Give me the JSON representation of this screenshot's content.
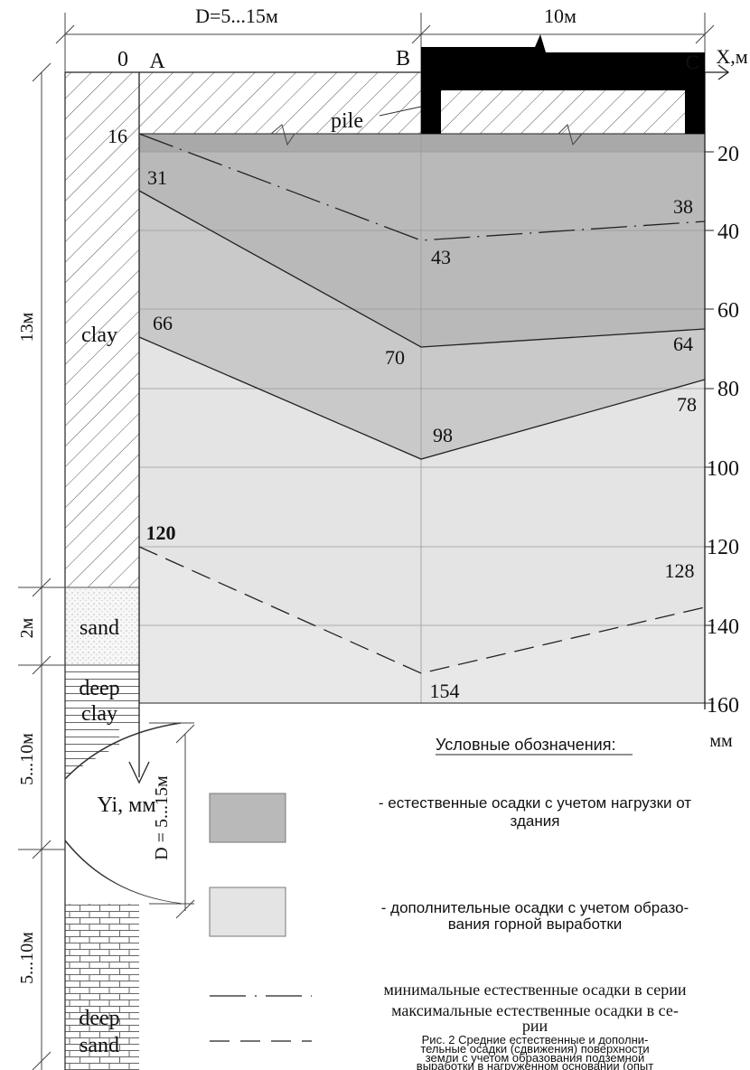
{
  "dimensions": {
    "top_left": "D=5...15м",
    "top_right": "10м",
    "left_13": "13м",
    "left_2": "2м",
    "left_5a": "5...10м",
    "left_5b": "5...10м",
    "vertical_D": "D = 5...15м"
  },
  "points": {
    "origin": "0",
    "a": "A",
    "b": "B",
    "c": "C"
  },
  "axes": {
    "x": "X,м",
    "y": "Yi, мм",
    "right_unit": "мм"
  },
  "labels": {
    "pile": "pile",
    "clay": "clay",
    "sand": "sand",
    "deep_clay_1": "deep",
    "deep_clay_2": "clay",
    "deep_sand_1": "deep",
    "deep_sand_2": "sand"
  },
  "scale_ticks": [
    "20",
    "40",
    "60",
    "80",
    "100",
    "120",
    "140",
    "160"
  ],
  "values": {
    "a_16": "16",
    "a_31": "31",
    "a_66": "66",
    "a_120": "120",
    "b_43": "43",
    "b_70": "70",
    "b_98": "98",
    "b_154": "154",
    "c_38": "38",
    "c_64": "64",
    "c_78": "78",
    "c_128": "128"
  },
  "legend": {
    "title": "Условные обозначения",
    "title_suffix": ":",
    "dark_1": "- естественные осадки с учетом нагрузки от",
    "dark_2": "здания",
    "light_1": "- дополнительные осадки с учетом образо-",
    "light_2": "вания горной выработки",
    "min": "минимальные естественные осадки в серии",
    "max_1": "максимальные естественные осадки в се-",
    "max_2": "рии"
  },
  "caption": [
    "Рис. 2 Средние естественные и дополни-",
    "тельные осадки (сдвижения) поверхности",
    "земли с учетом образования подземной",
    "выработки в нагруженном основании (опыт"
  ],
  "colors": {
    "dark_fill": "#b9b9b9",
    "light_fill": "#e4e4e4",
    "top_band": "#a9a9a9",
    "pile": "#000000"
  }
}
